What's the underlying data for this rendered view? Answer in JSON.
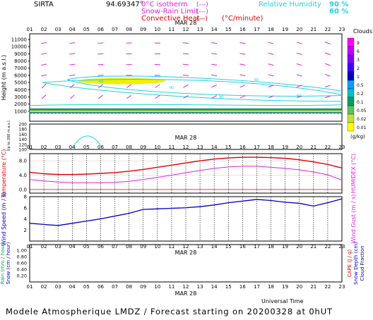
{
  "header": {
    "station": "SIRTA",
    "coords": "94.69347°",
    "legend_isotherm": "0°C isotherm",
    "legend_snow": "Snow-Rain Limit",
    "legend_convective": "Convective Heat",
    "legend_unit": "(°C/minute)",
    "legend_dash1": "(---)",
    "legend_dash2": "(---)",
    "legend_solid": "(—)",
    "rh_label": "Relative Humidity",
    "rh_90": "90 %",
    "rh_60": "60 %"
  },
  "colors": {
    "magenta": "#e020e0",
    "cyan": "#20d0e0",
    "red": "#e00000",
    "blue": "#0000c0",
    "yellow": "#f0f000",
    "navy": "#000080"
  },
  "hours": [
    "01",
    "02",
    "03",
    "04",
    "05",
    "06",
    "07",
    "08",
    "09",
    "10",
    "11",
    "12",
    "13",
    "14",
    "15",
    "16",
    "17",
    "18",
    "19",
    "20",
    "21",
    "22",
    "23"
  ],
  "date_label": "MAR 28",
  "bottom_time_label": "Universal Time",
  "footer": "Modele Atmospherique LMDZ / Forecast starting on 20200328 at 0hUT",
  "chart_data": [
    {
      "type": "heatmap",
      "title": "",
      "ylabel": "Height (m a.s.l.)",
      "y_ticks": [
        "11000",
        "10000",
        "9000",
        "8000",
        "7000",
        "6000",
        "5000",
        "4000",
        "3000",
        "2000",
        "1000"
      ],
      "ylabel2": "Up to 200 m a.s.l.",
      "y2_ticks": [
        "200",
        "180",
        "160",
        "140",
        "120",
        "100"
      ],
      "colorbar": {
        "title": "Clouds",
        "unit": "(g/kg)",
        "levels": [
          "9",
          "6",
          "3",
          "2",
          "1",
          "0.5",
          "0.2",
          "0.1",
          "0.05",
          "0.02",
          "0.01"
        ],
        "colors": [
          "#ff00ff",
          "#c000ff",
          "#8000ff",
          "#4000ff",
          "#0000c0",
          "#00a0ff",
          "#00c0c0",
          "#00a060",
          "#60c060",
          "#c0e040",
          "#ffff00"
        ]
      },
      "contour_labels": [
        "60",
        "90"
      ]
    },
    {
      "type": "line",
      "title": "",
      "ylabel": "Temperature (°C)",
      "ylabel2": "HUMIDEX (°C)",
      "y_ticks": [
        "8.0",
        "4.0",
        "0.0"
      ],
      "ylim": [
        -1,
        10
      ],
      "series": [
        {
          "values": [
            4.8,
            4.4,
            4.2,
            4.2,
            4.3,
            4.5,
            4.7,
            5.1,
            5.6,
            6.2,
            6.8,
            7.4,
            8.0,
            8.5,
            8.8,
            9.0,
            9.0,
            8.9,
            8.7,
            8.3,
            7.7,
            7.0,
            6.0
          ]
        },
        {
          "values": [
            2.8,
            2.4,
            2.1,
            1.9,
            1.9,
            1.9,
            2.0,
            2.3,
            2.8,
            3.4,
            4.0,
            4.7,
            5.3,
            5.9,
            6.3,
            6.5,
            6.5,
            6.2,
            5.9,
            5.5,
            4.9,
            4.1,
            2.6
          ]
        }
      ]
    },
    {
      "type": "line",
      "title": "",
      "ylabel": "Wind Speed (m / s)",
      "ylabel2": "Wind Gust (m / s)",
      "y_ticks": [
        "8",
        "6",
        "4",
        "2"
      ],
      "ylim": [
        0,
        8
      ],
      "series": [
        {
          "values": [
            3.2,
            3.0,
            2.8,
            3.2,
            3.6,
            4.0,
            4.5,
            5.0,
            5.7,
            5.8,
            5.9,
            6.0,
            6.2,
            6.5,
            6.9,
            7.2,
            7.5,
            7.3,
            7.0,
            6.8,
            6.3,
            6.9,
            7.6
          ]
        }
      ]
    },
    {
      "type": "bar",
      "title": "",
      "ylabel": "Rain (mm / hour)",
      "ylabel_b": "Snow (cm / hour)",
      "ylabel2": "CAPE (J / g)",
      "ylabel2_b": "Snow Depth (cm)",
      "ylabel2_c": "Cloud Fraction",
      "y_ticks": [
        "1.00",
        "0.80",
        "0.60",
        "0.40",
        "0.20"
      ],
      "ylim": [
        0,
        1
      ],
      "values": [
        0,
        0,
        0,
        0,
        0,
        0,
        0,
        0,
        0,
        0,
        0,
        0,
        0,
        0,
        0,
        0,
        0,
        0,
        0,
        0,
        0,
        0,
        0
      ]
    }
  ]
}
